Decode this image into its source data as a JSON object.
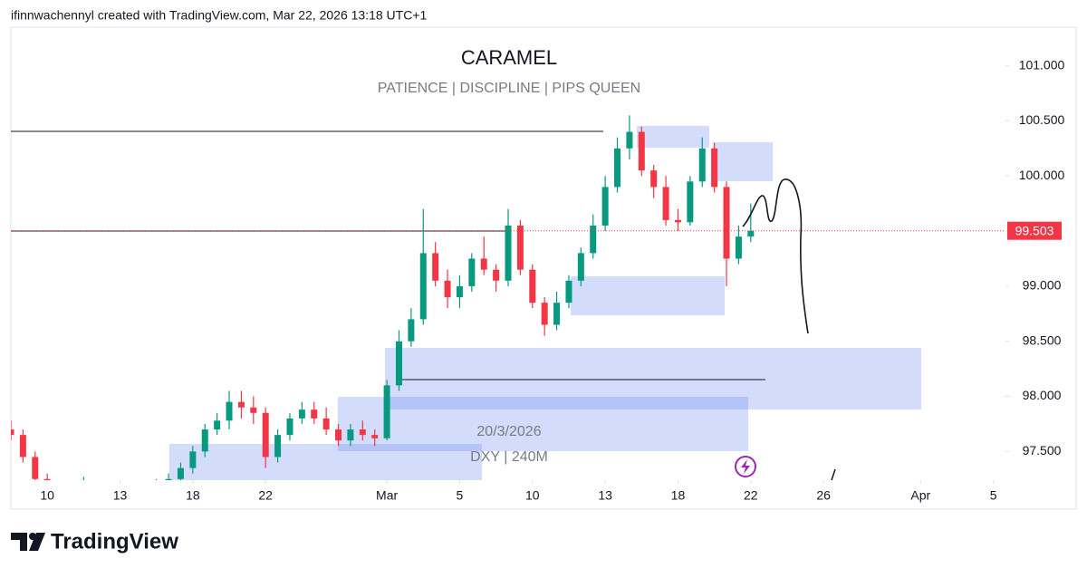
{
  "header": "ifinnwachennyl created with TradingView.com, Mar 22, 2026 13:18 UTC+1",
  "footer": "TradingView",
  "chart_data": {
    "type": "candlestick",
    "title": "CARAMEL",
    "subtitle": "PATIENCE  |  DISCIPLINE  |  PIPS QUEEN",
    "annotations": [
      "20/3/2026",
      "DXY | 240M"
    ],
    "up_color": "#089981",
    "down_color": "#f23645",
    "x": [
      -1.5,
      -1,
      -0.5,
      0,
      0.5,
      1,
      1.5,
      2,
      2.5,
      3,
      3.5,
      4,
      4.5,
      5,
      5.5,
      6,
      6.5,
      7,
      7.5,
      8,
      8.5,
      9,
      9.5,
      10,
      10.5,
      11,
      11.5,
      12,
      12.5,
      13,
      13.5,
      14,
      14.5,
      15,
      15.5,
      16,
      16.5,
      17,
      17.5,
      18,
      18.5,
      19,
      19.5,
      20,
      20.5,
      21,
      21.5,
      22,
      22.5,
      23,
      23.5,
      24,
      24.5,
      25,
      25.5,
      26,
      26.5,
      27,
      27.5,
      28,
      28.5,
      29
    ],
    "open": [
      97.7,
      97.65,
      97.45,
      97.25,
      97.1,
      97.0,
      97.05,
      97.15,
      97.05,
      97.0,
      97.05,
      97.1,
      97.15,
      97.2,
      97.25,
      97.35,
      97.5,
      97.7,
      97.78,
      97.95,
      97.9,
      97.85,
      97.45,
      97.65,
      97.8,
      97.88,
      97.8,
      97.7,
      97.6,
      97.7,
      97.65,
      97.62,
      98.1,
      98.5,
      98.7,
      99.3,
      99.05,
      98.9,
      99.0,
      99.25,
      99.15,
      99.05,
      99.55,
      99.15,
      98.85,
      98.65,
      98.85,
      99.05,
      99.3,
      99.55,
      99.9,
      100.25,
      100.4,
      100.05,
      99.9,
      99.6,
      99.58,
      99.95,
      100.25,
      99.9,
      99.25,
      99.45
    ],
    "high": [
      97.78,
      97.7,
      97.5,
      97.3,
      97.15,
      97.1,
      97.27,
      97.2,
      97.1,
      97.1,
      97.15,
      97.2,
      97.25,
      97.3,
      97.4,
      97.55,
      97.75,
      97.85,
      98.05,
      98.05,
      98.0,
      97.9,
      97.7,
      97.85,
      97.95,
      97.95,
      97.9,
      97.75,
      97.75,
      97.78,
      97.7,
      98.15,
      98.6,
      98.8,
      99.7,
      99.4,
      99.15,
      99.1,
      99.3,
      99.45,
      99.2,
      99.7,
      99.6,
      99.2,
      98.9,
      98.95,
      99.1,
      99.35,
      99.65,
      100.0,
      100.35,
      100.55,
      100.45,
      100.1,
      100.0,
      99.7,
      100.0,
      100.35,
      100.3,
      99.95,
      99.55,
      99.75
    ],
    "low": [
      97.6,
      97.4,
      97.2,
      97.05,
      96.95,
      96.9,
      97.0,
      97.0,
      96.95,
      96.9,
      96.95,
      97.0,
      97.05,
      97.1,
      97.2,
      97.3,
      97.45,
      97.65,
      97.7,
      97.8,
      97.75,
      97.35,
      97.4,
      97.6,
      97.75,
      97.75,
      97.65,
      97.55,
      97.55,
      97.6,
      97.55,
      97.6,
      98.05,
      98.45,
      98.65,
      99.0,
      98.8,
      98.8,
      98.95,
      99.1,
      98.95,
      99.0,
      99.1,
      98.8,
      98.55,
      98.6,
      98.8,
      99.0,
      99.25,
      99.5,
      99.85,
      100.15,
      100.0,
      99.8,
      99.55,
      99.5,
      99.55,
      99.9,
      99.85,
      99.0,
      99.2,
      99.4
    ],
    "close": [
      97.65,
      97.45,
      97.25,
      97.1,
      97.0,
      97.05,
      97.15,
      97.05,
      97.0,
      97.05,
      97.1,
      97.15,
      97.2,
      97.25,
      97.35,
      97.5,
      97.7,
      97.78,
      97.95,
      97.9,
      97.85,
      97.45,
      97.65,
      97.8,
      97.88,
      97.8,
      97.7,
      97.6,
      97.7,
      97.65,
      97.62,
      98.1,
      98.5,
      98.7,
      99.3,
      99.05,
      98.9,
      99.0,
      99.25,
      99.15,
      99.05,
      99.55,
      99.15,
      98.85,
      98.65,
      98.85,
      99.05,
      99.3,
      99.55,
      99.9,
      100.25,
      100.4,
      100.05,
      99.9,
      99.6,
      99.58,
      99.95,
      100.25,
      99.9,
      99.25,
      99.45,
      99.503
    ],
    "last_price": 99.503,
    "last_price_color": "#f23645",
    "ylim": [
      97.24,
      101.35
    ],
    "yticks": [
      {
        "value": 97.5,
        "label": "97.500"
      },
      {
        "value": 98,
        "label": "98.000"
      },
      {
        "value": 98.5,
        "label": "98.500"
      },
      {
        "value": 99,
        "label": "99.000"
      },
      {
        "value": 99.5,
        "label": "99.500"
      },
      {
        "value": 100,
        "label": "100.000"
      },
      {
        "value": 100.5,
        "label": "100.500"
      },
      {
        "value": 101,
        "label": "101.000"
      }
    ],
    "xlim": [
      -1.5,
      39.5
    ],
    "xticks": [
      {
        "value": 0,
        "label": "10"
      },
      {
        "value": 3,
        "label": "13"
      },
      {
        "value": 6,
        "label": "18"
      },
      {
        "value": 9,
        "label": "22"
      },
      {
        "value": 14,
        "label": "Mar"
      },
      {
        "value": 17,
        "label": "5"
      },
      {
        "value": 20,
        "label": "10"
      },
      {
        "value": 23,
        "label": "13"
      },
      {
        "value": 26,
        "label": "18"
      },
      {
        "value": 29,
        "label": "22"
      },
      {
        "value": 32,
        "label": "26"
      },
      {
        "value": 36,
        "label": "Apr"
      },
      {
        "value": 39,
        "label": "5"
      }
    ]
  }
}
